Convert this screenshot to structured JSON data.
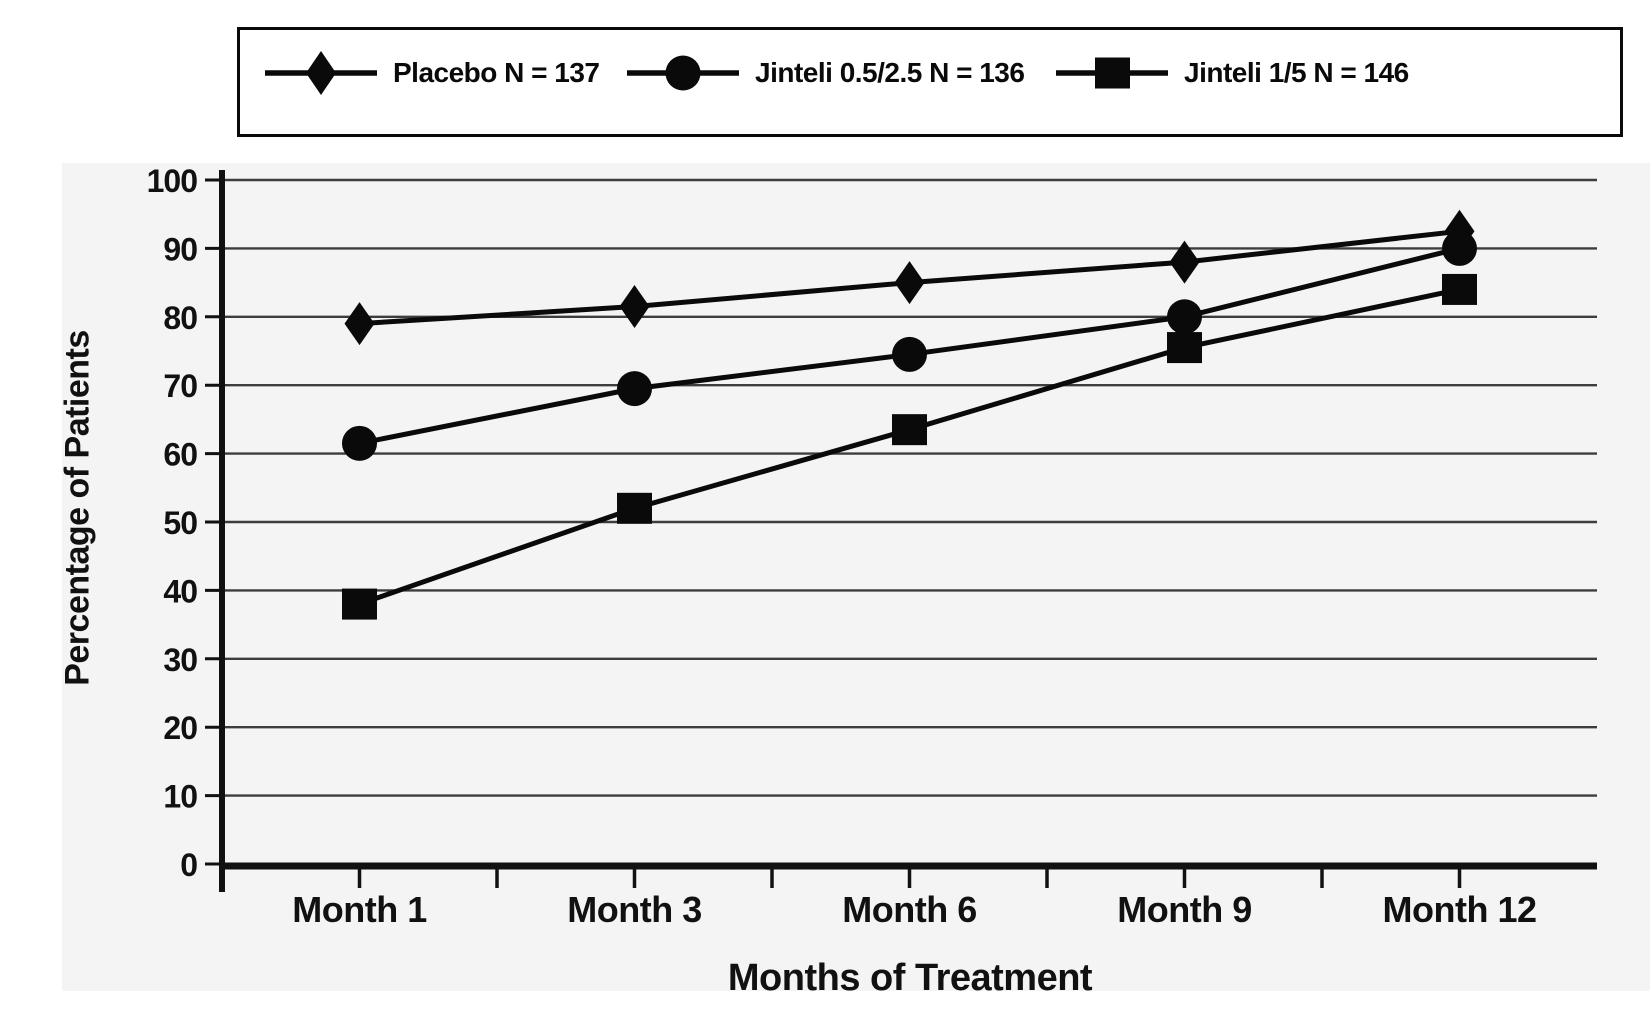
{
  "chart_data": {
    "type": "line",
    "title": "",
    "categories": [
      "Month 1",
      "Month 3",
      "Month 6",
      "Month 9",
      "Month 12"
    ],
    "series": [
      {
        "name": "Placebo N = 137",
        "marker": "diamond",
        "values": [
          79,
          81.5,
          85,
          88,
          92.5
        ]
      },
      {
        "name": "Jinteli 0.5/2.5 N = 136",
        "marker": "circle",
        "values": [
          61.5,
          69.5,
          74.5,
          80,
          90
        ]
      },
      {
        "name": "Jinteli 1/5 N = 146",
        "marker": "square",
        "values": [
          38,
          52,
          63.5,
          75.5,
          84
        ]
      }
    ],
    "xlabel": "Months of Treatment",
    "ylabel": "Percentage of Patients",
    "ylim": [
      0,
      100
    ],
    "yticks": [
      0,
      10,
      20,
      30,
      40,
      50,
      60,
      70,
      80,
      90,
      100
    ],
    "grid": "horizontal",
    "legend_position": "top",
    "colors": {
      "series": "#0a0a0a",
      "gridline": "#3d3d3d",
      "axis": "#111111",
      "figure_background": "#f4f4f4",
      "page_background": "#ffffff"
    }
  }
}
